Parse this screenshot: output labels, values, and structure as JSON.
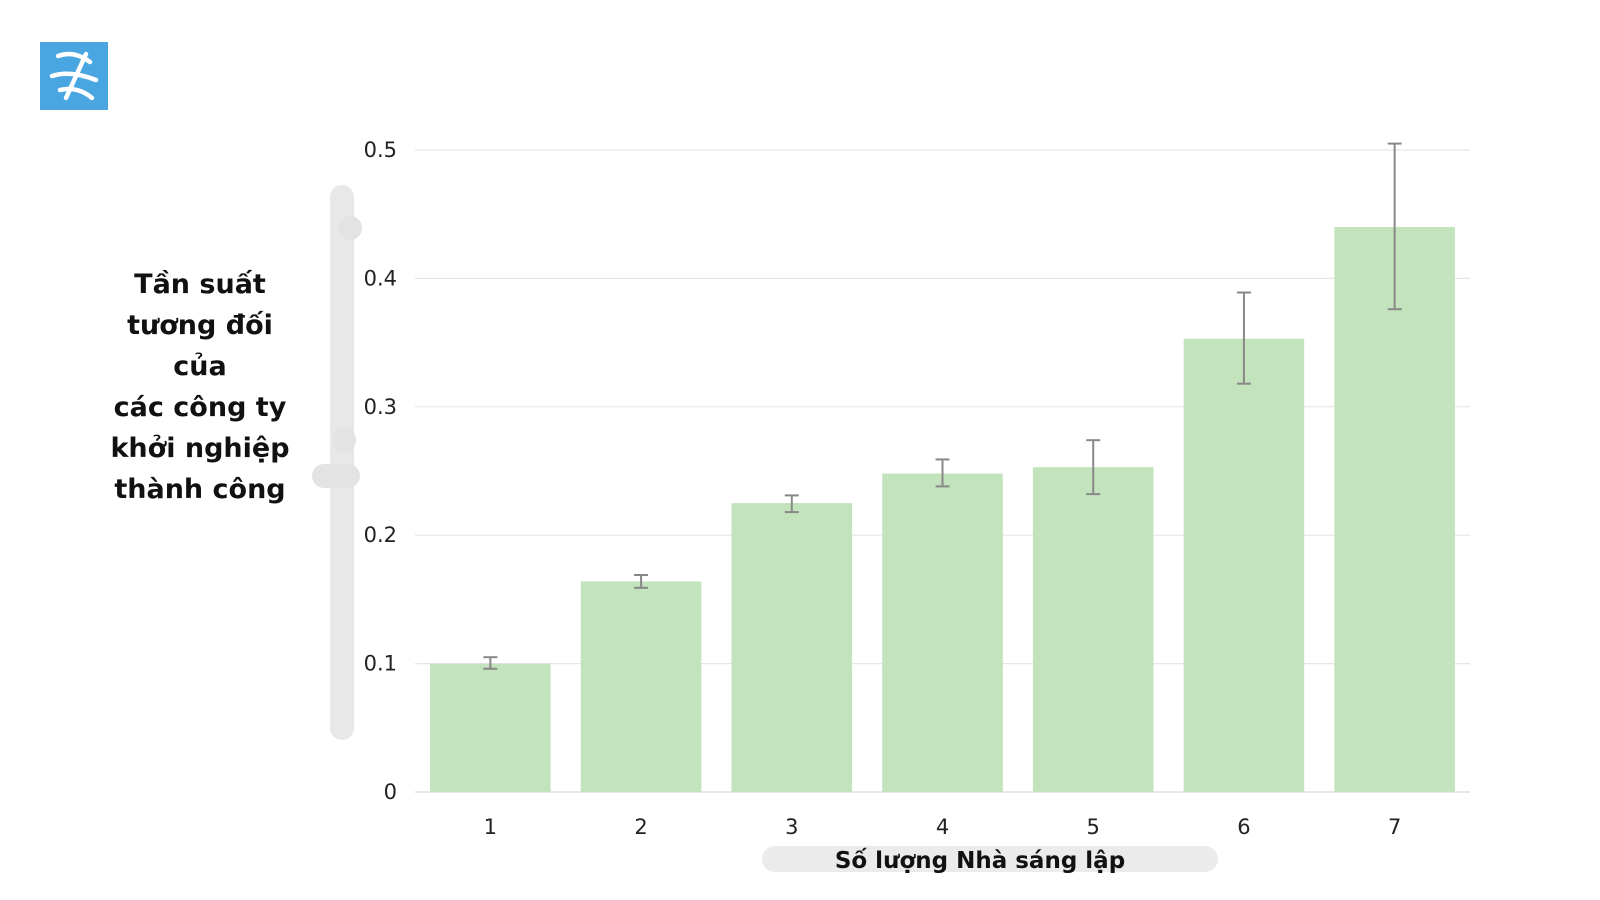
{
  "logo": {
    "icon": "brand-logo-icon",
    "color": "#4aa6e0"
  },
  "chart_data": {
    "type": "bar",
    "categories": [
      "1",
      "2",
      "3",
      "4",
      "5",
      "6",
      "7"
    ],
    "values": [
      0.1,
      0.164,
      0.225,
      0.248,
      0.253,
      0.353,
      0.44
    ],
    "error_bars": [
      [
        0.096,
        0.105
      ],
      [
        0.159,
        0.169
      ],
      [
        0.218,
        0.231
      ],
      [
        0.238,
        0.259
      ],
      [
        0.232,
        0.274
      ],
      [
        0.318,
        0.389
      ],
      [
        0.376,
        0.505
      ]
    ],
    "title": "",
    "xlabel": "Số lượng Nhà sáng lập",
    "ylabel": "Tần suất\ntương đối\ncủa\ncác công ty\nkhởi nghiệp\nthành công",
    "ylim": [
      0,
      0.5
    ],
    "yticks": [
      "0",
      "0.1",
      "0.2",
      "0.3",
      "0.4",
      "0.5"
    ],
    "grid": true,
    "bar_color": "#c3e3bc",
    "error_color": "#888888",
    "grid_color": "#e6e6e6"
  }
}
